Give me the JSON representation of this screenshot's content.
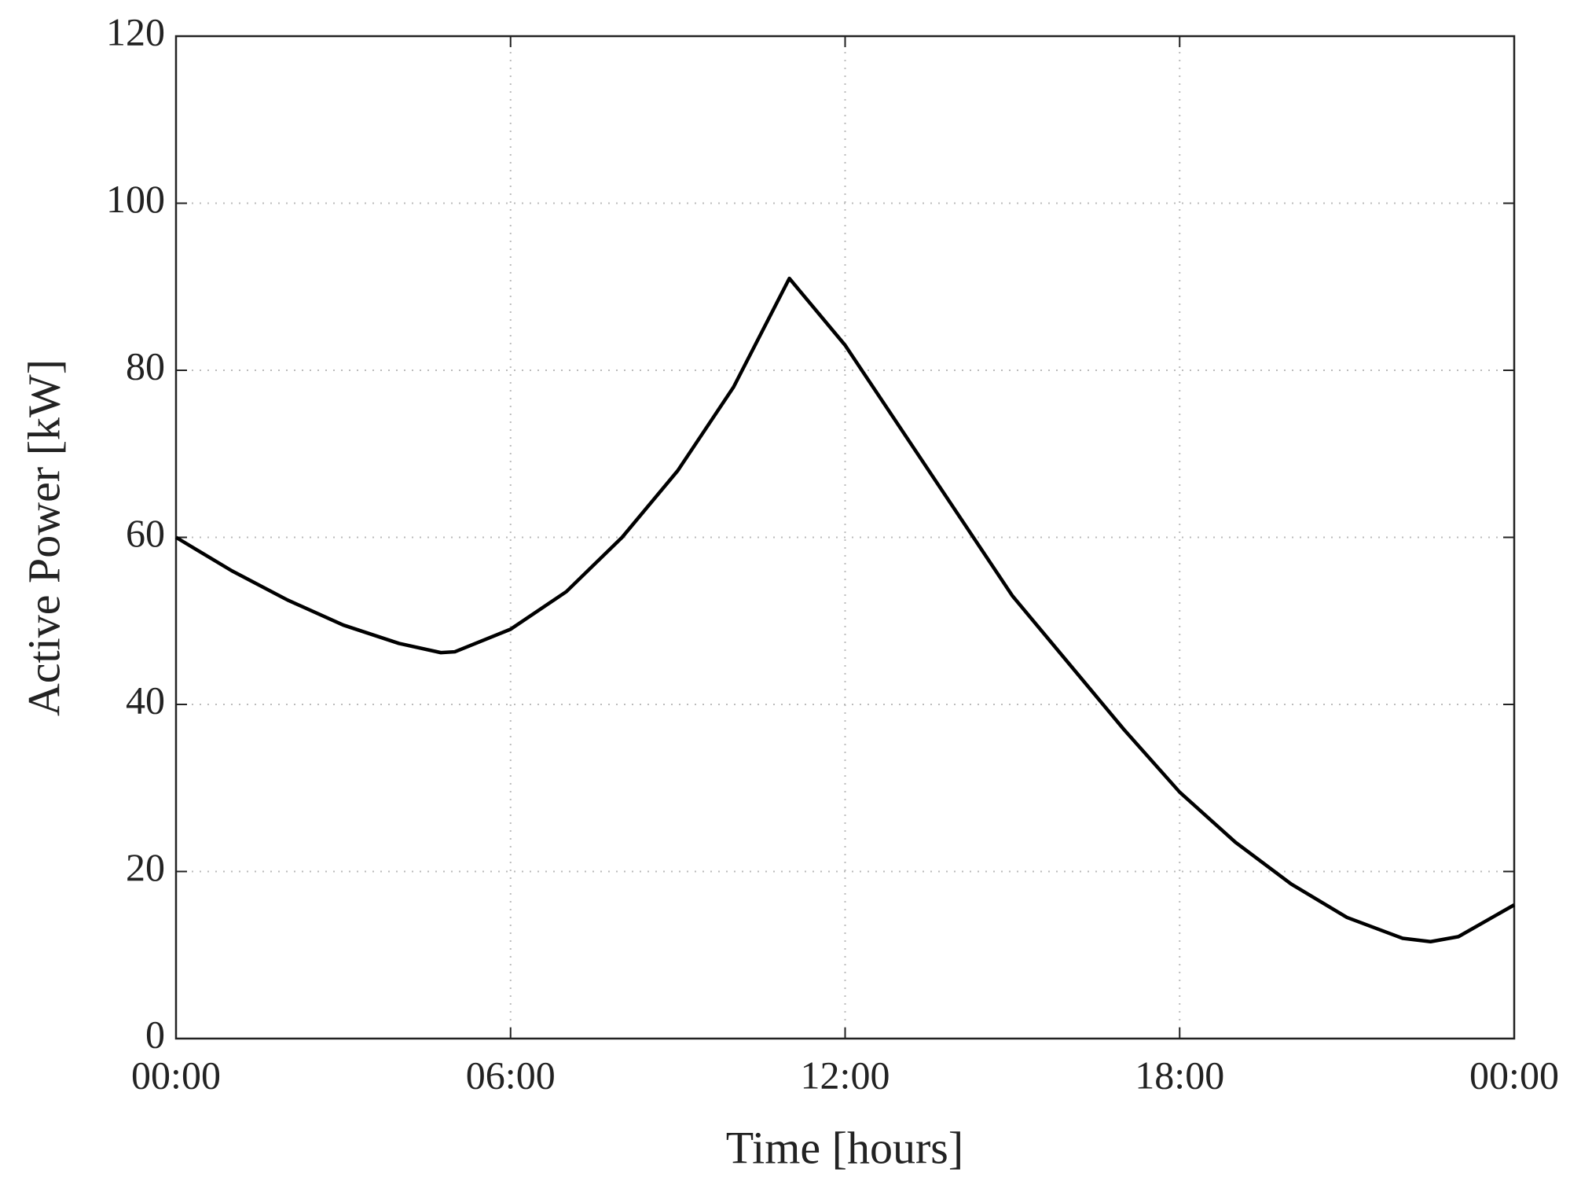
{
  "chart_data": {
    "type": "line",
    "xlabel": "Time [hours]",
    "ylabel": "Active Power [kW]",
    "x": [
      0,
      1,
      2,
      3,
      4,
      4.75,
      5,
      6,
      7,
      8,
      9,
      10,
      11,
      12,
      13,
      14,
      15,
      16,
      17,
      18,
      19,
      20,
      21,
      22,
      22.5,
      23,
      24
    ],
    "series": [
      {
        "name": "Active Power",
        "color": "#000000",
        "values": [
          60,
          56,
          52.5,
          49.5,
          47.3,
          46.2,
          46.3,
          49,
          53.5,
          60,
          68,
          78,
          91,
          83,
          73,
          63,
          53,
          45,
          37,
          29.5,
          23.5,
          18.5,
          14.5,
          12,
          11.6,
          12.2,
          16
        ]
      }
    ],
    "xlim": [
      0,
      24
    ],
    "xticks": [
      {
        "value": 0,
        "label": "00:00"
      },
      {
        "value": 6,
        "label": "06:00"
      },
      {
        "value": 12,
        "label": "12:00"
      },
      {
        "value": 18,
        "label": "18:00"
      },
      {
        "value": 24,
        "label": "00:00"
      }
    ],
    "ylim": [
      0,
      120
    ],
    "yticks": [
      0,
      20,
      40,
      60,
      80,
      100,
      120
    ],
    "grid": true
  }
}
